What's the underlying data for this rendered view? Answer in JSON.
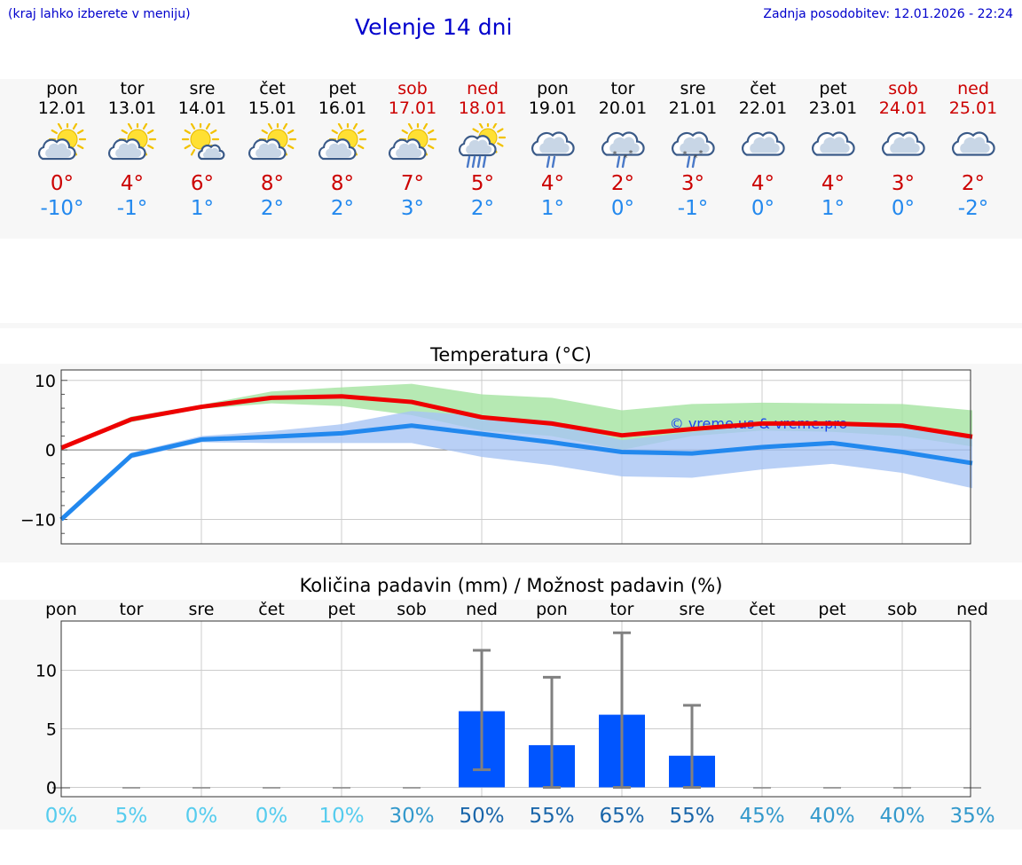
{
  "header": {
    "menu_hint": "(kraj lahko izberete v meniju)",
    "title": "Velenje 14 dni",
    "updated": "Zadnja posodobitev: 12.01.2026 - 22:24"
  },
  "colors": {
    "weekday": "#000000",
    "weekend": "#cc0000",
    "tmax": "#cc0000",
    "tmin": "#2288ee",
    "bar": "#0055ff"
  },
  "days": [
    {
      "wd": "pon",
      "date": "12.01",
      "weekend": false,
      "icon": "sun-cloud-icon",
      "tmax": "0°",
      "tmin": "-10°"
    },
    {
      "wd": "tor",
      "date": "13.01",
      "weekend": false,
      "icon": "sun-cloud-icon",
      "tmax": "4°",
      "tmin": "-1°"
    },
    {
      "wd": "sre",
      "date": "14.01",
      "weekend": false,
      "icon": "sun-small-cloud-icon",
      "tmax": "6°",
      "tmin": "1°"
    },
    {
      "wd": "čet",
      "date": "15.01",
      "weekend": false,
      "icon": "sun-cloud-icon",
      "tmax": "8°",
      "tmin": "2°"
    },
    {
      "wd": "pet",
      "date": "16.01",
      "weekend": false,
      "icon": "sun-cloud-icon",
      "tmax": "8°",
      "tmin": "2°"
    },
    {
      "wd": "sob",
      "date": "17.01",
      "weekend": true,
      "icon": "sun-cloud-icon",
      "tmax": "7°",
      "tmin": "3°"
    },
    {
      "wd": "ned",
      "date": "18.01",
      "weekend": true,
      "icon": "sun-cloud-rain-icon",
      "tmax": "5°",
      "tmin": "2°"
    },
    {
      "wd": "pon",
      "date": "19.01",
      "weekend": false,
      "icon": "cloud-rain-icon",
      "tmax": "4°",
      "tmin": "1°"
    },
    {
      "wd": "tor",
      "date": "20.01",
      "weekend": false,
      "icon": "cloud-sleet-icon",
      "tmax": "2°",
      "tmin": "0°"
    },
    {
      "wd": "sre",
      "date": "21.01",
      "weekend": false,
      "icon": "cloud-sleet-icon",
      "tmax": "3°",
      "tmin": "-1°"
    },
    {
      "wd": "čet",
      "date": "22.01",
      "weekend": false,
      "icon": "cloud-icon",
      "tmax": "4°",
      "tmin": "0°"
    },
    {
      "wd": "pet",
      "date": "23.01",
      "weekend": false,
      "icon": "cloud-icon",
      "tmax": "4°",
      "tmin": "1°"
    },
    {
      "wd": "sob",
      "date": "24.01",
      "weekend": true,
      "icon": "cloud-icon",
      "tmax": "3°",
      "tmin": "0°"
    },
    {
      "wd": "ned",
      "date": "25.01",
      "weekend": true,
      "icon": "cloud-icon",
      "tmax": "2°",
      "tmin": "-2°"
    }
  ],
  "chart_data": [
    {
      "type": "line",
      "title": "Temperatura (°C)",
      "watermark": "© vreme.us & vreme.pro",
      "categories": [
        "12.01",
        "13.01",
        "14.01",
        "15.01",
        "16.01",
        "17.01",
        "18.01",
        "19.01",
        "20.01",
        "21.01",
        "22.01",
        "23.01",
        "24.01",
        "25.01"
      ],
      "ylim": [
        -13.5,
        11.5
      ],
      "yticks": [
        -10,
        0,
        10
      ],
      "ytick_labels": [
        "−10",
        "0",
        "10"
      ],
      "grid": true,
      "series": [
        {
          "name": "max",
          "color": "#ee0000",
          "values": [
            0.3,
            4.4,
            6.2,
            7.5,
            7.7,
            6.9,
            4.7,
            3.8,
            2.1,
            3.0,
            3.8,
            3.8,
            3.5,
            1.9
          ]
        },
        {
          "name": "min",
          "color": "#2288ee",
          "values": [
            -10.0,
            -0.8,
            1.5,
            1.9,
            2.4,
            3.5,
            2.3,
            1.1,
            -0.3,
            -0.5,
            0.4,
            1.0,
            -0.3,
            -1.9
          ]
        }
      ],
      "bands": [
        {
          "name": "max-range",
          "color": "#a4e4a0",
          "lower": [
            0.1,
            4.0,
            5.9,
            6.7,
            6.3,
            5.0,
            2.8,
            2.0,
            0.0,
            2.0,
            2.8,
            2.6,
            2.0,
            0.5
          ],
          "upper": [
            0.5,
            4.8,
            6.5,
            8.4,
            9.0,
            9.5,
            8.0,
            7.5,
            5.7,
            6.6,
            6.8,
            6.7,
            6.6,
            5.7
          ]
        },
        {
          "name": "min-range",
          "color": "#a8c4f4",
          "lower": [
            -10.2,
            -1.2,
            1.1,
            1.0,
            1.0,
            1.0,
            -1.0,
            -2.2,
            -3.8,
            -4.0,
            -2.8,
            -2.0,
            -3.3,
            -5.5
          ],
          "upper": [
            -9.8,
            -0.4,
            2.0,
            2.7,
            3.7,
            5.6,
            4.9,
            4.2,
            1.4,
            2.6,
            3.6,
            3.8,
            3.8,
            2.0
          ]
        }
      ]
    },
    {
      "type": "bar",
      "title": "Količina padavin (mm) / Možnost padavin (%)",
      "categories": [
        "pon",
        "tor",
        "sre",
        "čet",
        "pet",
        "sob",
        "ned",
        "pon",
        "tor",
        "sre",
        "čet",
        "pet",
        "sob",
        "ned"
      ],
      "values": [
        0,
        0,
        0,
        0,
        0,
        0,
        6.5,
        3.6,
        6.2,
        2.7,
        0,
        0,
        0,
        0
      ],
      "error_low": [
        0,
        0,
        0,
        0,
        0,
        0,
        1.5,
        0,
        0,
        0,
        0,
        0,
        0,
        0
      ],
      "error_high": [
        0,
        0,
        0,
        0,
        0,
        0,
        11.7,
        9.4,
        13.2,
        7.0,
        0,
        0,
        0,
        0
      ],
      "probability": [
        "0%",
        "5%",
        "0%",
        "0%",
        "10%",
        "30%",
        "50%",
        "55%",
        "65%",
        "55%",
        "45%",
        "40%",
        "40%",
        "35%"
      ],
      "prob_colors": [
        "#55ccee",
        "#55ccee",
        "#55ccee",
        "#55ccee",
        "#55ccee",
        "#3399cc",
        "#1a66aa",
        "#1a66aa",
        "#1a66aa",
        "#1a66aa",
        "#3399cc",
        "#3399cc",
        "#3399cc",
        "#3399cc"
      ],
      "ylim": [
        -0.8,
        14.2
      ],
      "yticks": [
        0,
        5,
        10
      ],
      "ytick_labels": [
        "0",
        "5",
        "10"
      ],
      "grid": true
    }
  ]
}
